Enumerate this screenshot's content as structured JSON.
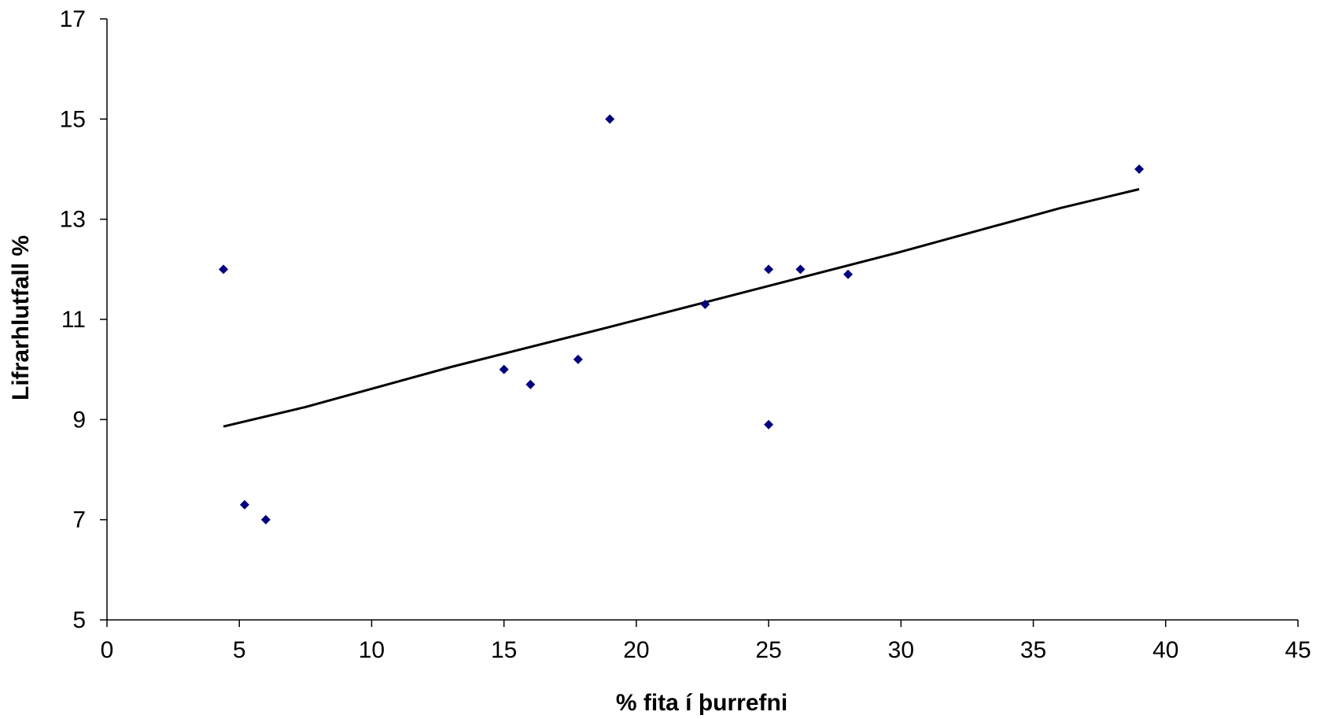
{
  "chart_data": {
    "type": "scatter",
    "title": "",
    "xlabel": "% fita í þurrefni",
    "ylabel": "Lifrarhlutfall %",
    "xlim": [
      0,
      45
    ],
    "ylim": [
      5,
      17
    ],
    "xticks": [
      0,
      5,
      10,
      15,
      20,
      25,
      30,
      35,
      40,
      45
    ],
    "yticks": [
      5,
      7,
      9,
      11,
      13,
      15,
      17
    ],
    "grid": false,
    "legend": "none",
    "marker_color": "#00007F",
    "line_color": "#000000",
    "series": [
      {
        "points": [
          {
            "x": 4.4,
            "y": 12.0
          },
          {
            "x": 5.2,
            "y": 7.3
          },
          {
            "x": 6.0,
            "y": 7.0
          },
          {
            "x": 15.0,
            "y": 10.0
          },
          {
            "x": 16.0,
            "y": 9.7
          },
          {
            "x": 17.8,
            "y": 10.2
          },
          {
            "x": 19.0,
            "y": 15.0
          },
          {
            "x": 22.6,
            "y": 11.3
          },
          {
            "x": 25.0,
            "y": 12.0
          },
          {
            "x": 25.0,
            "y": 8.9
          },
          {
            "x": 26.2,
            "y": 12.0
          },
          {
            "x": 28.0,
            "y": 11.9
          },
          {
            "x": 39.0,
            "y": 14.0
          }
        ]
      }
    ],
    "trendline": {
      "points": [
        {
          "x": 4.4,
          "y": 8.86
        },
        {
          "x": 7.5,
          "y": 9.25
        },
        {
          "x": 13.0,
          "y": 10.05
        },
        {
          "x": 19.0,
          "y": 10.85
        },
        {
          "x": 24.5,
          "y": 11.6
        },
        {
          "x": 30.0,
          "y": 12.35
        },
        {
          "x": 36.0,
          "y": 13.22
        },
        {
          "x": 39.0,
          "y": 13.6
        }
      ]
    }
  }
}
